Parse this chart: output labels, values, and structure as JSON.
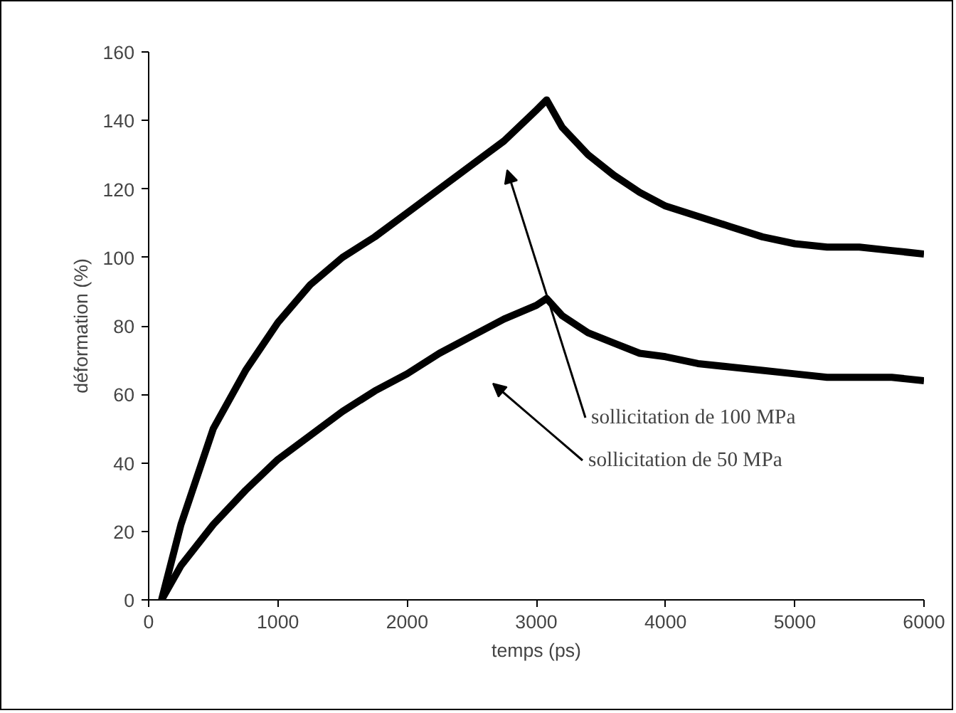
{
  "chart_data": {
    "type": "line",
    "xlabel": "temps (ps)",
    "ylabel": "déformation (%)",
    "xlim": [
      0,
      6000
    ],
    "ylim": [
      0,
      160
    ],
    "xticks": [
      0,
      1000,
      2000,
      3000,
      4000,
      5000,
      6000
    ],
    "yticks": [
      0,
      20,
      40,
      60,
      80,
      100,
      120,
      140,
      160
    ],
    "grid": false,
    "marker": "none",
    "line_style": "solid",
    "series": [
      {
        "color": "#000000",
        "x": [
          100,
          250,
          500,
          750,
          1000,
          1250,
          1500,
          1750,
          2000,
          2250,
          2500,
          2750,
          3000,
          3080,
          3200,
          3400,
          3600,
          3800,
          4000,
          4250,
          4500,
          4750,
          5000,
          5250,
          5500,
          5750,
          6000
        ],
        "values": [
          0,
          22,
          50,
          67,
          81,
          92,
          100,
          106,
          113,
          120,
          127,
          134,
          143,
          146,
          138,
          130,
          124,
          119,
          115,
          112,
          109,
          106,
          104,
          103,
          103,
          102,
          101
        ]
      },
      {
        "color": "#000000",
        "x": [
          100,
          250,
          500,
          750,
          1000,
          1250,
          1500,
          1750,
          2000,
          2250,
          2500,
          2750,
          3000,
          3080,
          3200,
          3400,
          3600,
          3800,
          4000,
          4250,
          4500,
          4750,
          5000,
          5250,
          5500,
          5750,
          6000
        ],
        "values": [
          0,
          10,
          22,
          32,
          41,
          48,
          55,
          61,
          66,
          72,
          77,
          82,
          86,
          88,
          83,
          78,
          75,
          72,
          71,
          69,
          68,
          67,
          66,
          65,
          65,
          65,
          64
        ]
      }
    ],
    "annotations": [
      "sollicitation de 100 MPa",
      "sollicitation de 50 MPa"
    ]
  }
}
